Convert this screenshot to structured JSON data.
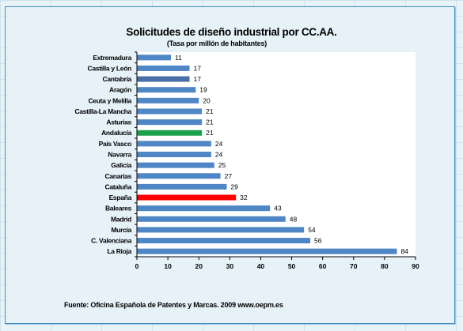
{
  "chart_data": {
    "type": "bar",
    "orientation": "horizontal",
    "title": "Solicitudes de diseño industrial por CC.AA.",
    "subtitle": "(Tasa por millón de habitantes)",
    "categories": [
      "Extremadura",
      "Castilla y León",
      "Cantabria",
      "Aragón",
      "Ceuta y Melilla",
      "Castilla-La Mancha",
      "Asturias",
      "Andalucía",
      "País Vasco",
      "Navarra",
      "Galicia",
      "Canarias",
      "Cataluña",
      "España",
      "Baleares",
      "Madrid",
      "Murcia",
      "C. Valenciana",
      "La Rioja"
    ],
    "values": [
      11,
      17,
      17,
      19,
      20,
      21,
      21,
      21,
      24,
      24,
      25,
      27,
      29,
      32,
      43,
      48,
      54,
      56,
      84
    ],
    "bar_colors": [
      "#4f86c6",
      "#4f86c6",
      "#4a6fa5",
      "#4f86c6",
      "#4f86c6",
      "#4f86c6",
      "#4f86c6",
      "#19a14a",
      "#4f86c6",
      "#4f86c6",
      "#4f86c6",
      "#4f86c6",
      "#4f86c6",
      "#ff0000",
      "#4f86c6",
      "#4f86c6",
      "#4f86c6",
      "#4f86c6",
      "#4f86c6"
    ],
    "xlim": [
      0,
      90
    ],
    "xticks": [
      0,
      10,
      20,
      30,
      40,
      50,
      60,
      70,
      80,
      90
    ],
    "grid": false,
    "data_labels": true
  },
  "footer": "Fuente: Oficina Española de Patentes y Marcas. 2009  www.oepm.es"
}
